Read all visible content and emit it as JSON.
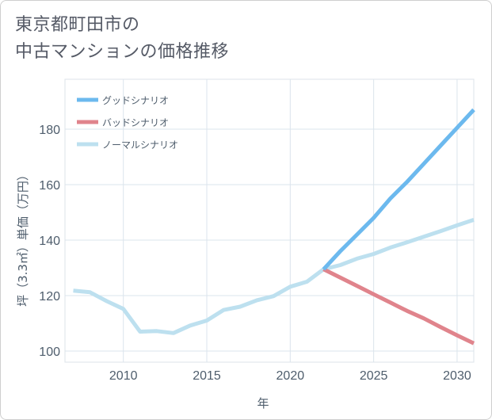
{
  "title_lines": [
    "東京都町田市の",
    "中古マンションの価格推移"
  ],
  "chart_data": {
    "type": "line",
    "xlabel": "年",
    "ylabel": "坪（3.3㎡）単価（万円）",
    "xlim": [
      2006.5,
      2031
    ],
    "ylim": [
      96,
      198
    ],
    "xticks": [
      2010,
      2015,
      2020,
      2025,
      2030
    ],
    "yticks": [
      100,
      120,
      140,
      160,
      180
    ],
    "grid": true,
    "legend_position": "top-left",
    "series": [
      {
        "name": "グッドシナリオ",
        "color": "#6cb9ee",
        "x": [
          2022,
          2023,
          2024,
          2025,
          2026,
          2027,
          2028,
          2029,
          2030,
          2031
        ],
        "y": [
          129.5,
          136,
          142,
          148,
          155,
          161,
          167.5,
          174,
          180.5,
          187
        ]
      },
      {
        "name": "バッドシナリオ",
        "color": "#e0848c",
        "x": [
          2022,
          2023,
          2024,
          2025,
          2026,
          2027,
          2028,
          2029,
          2030,
          2031
        ],
        "y": [
          129.5,
          126.5,
          123.5,
          120.5,
          117.5,
          114.5,
          111.8,
          108.7,
          105.7,
          102.8
        ]
      },
      {
        "name": "ノーマルシナリオ",
        "color": "#bde0ef",
        "x": [
          2007,
          2008,
          2009,
          2010,
          2011,
          2012,
          2013,
          2014,
          2015,
          2016,
          2017,
          2018,
          2019,
          2020,
          2021,
          2022,
          2023,
          2024,
          2025,
          2026,
          2027,
          2028,
          2029,
          2030,
          2031
        ],
        "y": [
          121.8,
          121.2,
          118,
          115.2,
          107,
          107.2,
          106.5,
          109.2,
          111,
          114.8,
          116,
          118.3,
          119.8,
          123.2,
          125,
          129.5,
          131,
          133.3,
          135,
          137.3,
          139.2,
          141.2,
          143.2,
          145.3,
          147.3
        ]
      }
    ]
  }
}
